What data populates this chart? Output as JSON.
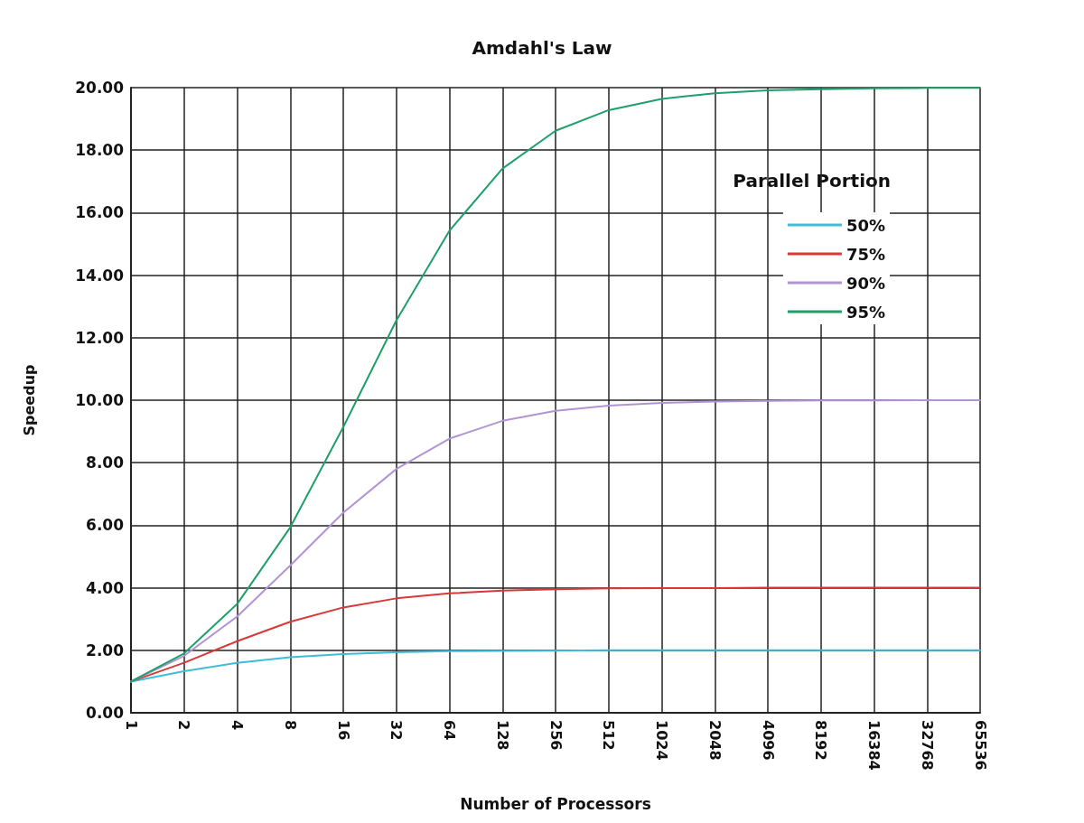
{
  "chart_data": {
    "type": "line",
    "title": "Amdahl's Law",
    "xlabel": "Number of Processors",
    "ylabel": "Speedup",
    "legend_title": "Parallel Portion",
    "categories": [
      "1",
      "2",
      "4",
      "8",
      "16",
      "32",
      "64",
      "128",
      "256",
      "512",
      "1024",
      "2048",
      "4096",
      "8192",
      "16384",
      "32768",
      "65536"
    ],
    "series": [
      {
        "name": "50%",
        "color": "#40bcd8",
        "values": [
          1.0,
          1.33,
          1.6,
          1.78,
          1.88,
          1.94,
          1.97,
          1.98,
          1.99,
          2.0,
          2.0,
          2.0,
          2.0,
          2.0,
          2.0,
          2.0,
          2.0
        ]
      },
      {
        "name": "75%",
        "color": "#d83838",
        "values": [
          1.0,
          1.6,
          2.29,
          2.91,
          3.37,
          3.66,
          3.82,
          3.91,
          3.95,
          3.98,
          3.99,
          3.99,
          4.0,
          4.0,
          4.0,
          4.0,
          4.0
        ]
      },
      {
        "name": "90%",
        "color": "#b094d4",
        "values": [
          1.0,
          1.82,
          3.08,
          4.71,
          6.4,
          7.8,
          8.77,
          9.34,
          9.66,
          9.83,
          9.91,
          9.96,
          9.98,
          9.99,
          9.99,
          10.0,
          10.0
        ]
      },
      {
        "name": "95%",
        "color": "#1ea06a",
        "values": [
          1.0,
          1.9,
          3.48,
          5.93,
          9.14,
          12.55,
          15.42,
          17.41,
          18.62,
          19.28,
          19.64,
          19.82,
          19.91,
          19.95,
          19.98,
          19.99,
          19.99
        ]
      }
    ],
    "ylim": [
      0,
      20
    ],
    "yticks": [
      {
        "value": 0,
        "label": "0.00"
      },
      {
        "value": 2,
        "label": "2.00"
      },
      {
        "value": 4,
        "label": "4.00"
      },
      {
        "value": 6,
        "label": "6.00"
      },
      {
        "value": 8,
        "label": "8.00"
      },
      {
        "value": 10,
        "label": "10.00"
      },
      {
        "value": 12,
        "label": "12.00"
      },
      {
        "value": 14,
        "label": "14.00"
      },
      {
        "value": 16,
        "label": "16.00"
      },
      {
        "value": 18,
        "label": "18.00"
      },
      {
        "value": 20,
        "label": "20.00"
      }
    ],
    "grid": true,
    "legend": "top right",
    "marker": "none",
    "line_style": "solid"
  }
}
